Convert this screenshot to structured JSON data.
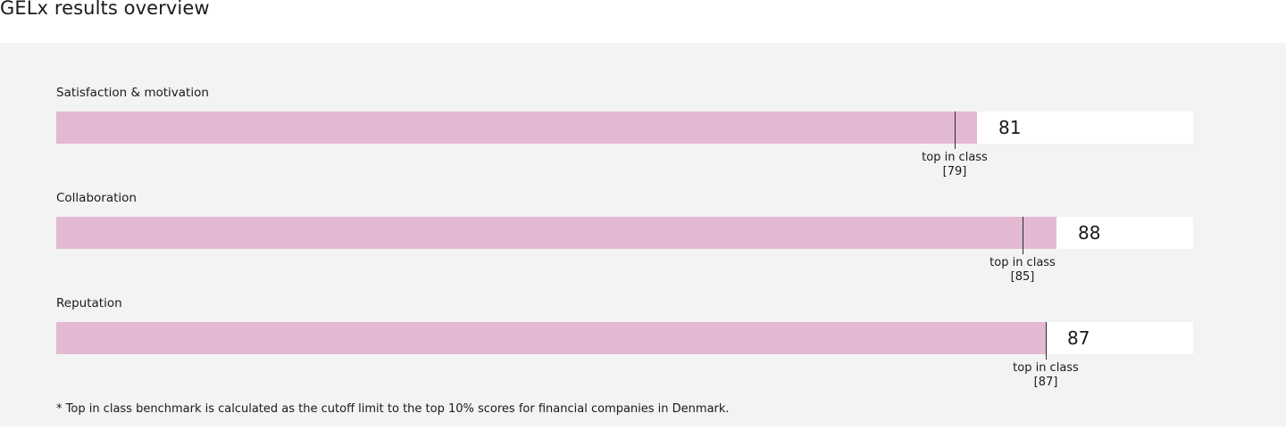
{
  "page": {
    "title": "GELx results overview"
  },
  "chart_data": {
    "type": "bar",
    "orientation": "horizontal",
    "xlim": [
      0,
      100
    ],
    "categories": [
      "Satisfaction & motivation",
      "Collaboration",
      "Reputation"
    ],
    "values": [
      81,
      88,
      87
    ],
    "benchmark_values": [
      79,
      85,
      87
    ],
    "benchmark_label": "top in class",
    "footnote": "* Top in class benchmark is calculated as the cutoff limit to the top 10% scores for financial companies in Denmark.",
    "colors": {
      "bar": "#e3b8d3",
      "track": "#ffffff",
      "panel": "#f3f3f3",
      "benchmark": "#2a2a2a"
    }
  }
}
